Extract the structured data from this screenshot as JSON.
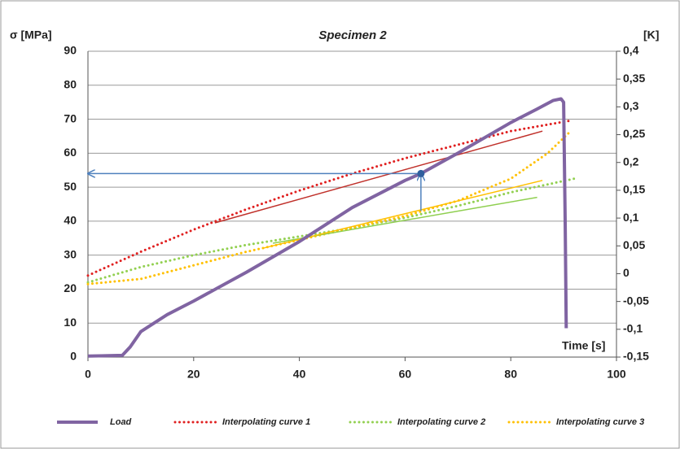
{
  "chart_data": {
    "type": "line",
    "title": "Specimen 2",
    "ylabel": "σ [MPa]",
    "y2label": "[K]",
    "xlabel": "Time [s]",
    "xlim": [
      0,
      100
    ],
    "xticks": [
      0,
      20,
      40,
      60,
      80,
      100
    ],
    "ylim": [
      0,
      90
    ],
    "yticks": [
      0,
      10,
      20,
      30,
      40,
      50,
      60,
      70,
      80,
      90
    ],
    "y2lim": [
      -0.15,
      0.4
    ],
    "y2ticks": [
      {
        "value": -0.15,
        "label": "-0,15"
      },
      {
        "value": -0.1,
        "label": "-0,1"
      },
      {
        "value": -0.05,
        "label": "-0,05"
      },
      0,
      {
        "value": 0.05,
        "label": "0,05"
      },
      {
        "value": 0.1,
        "label": "0,1"
      },
      {
        "value": 0.15,
        "label": "0,15"
      },
      {
        "value": 0.2,
        "label": "0,2"
      },
      {
        "value": 0.25,
        "label": "0,25"
      },
      {
        "value": 0.3,
        "label": "0,3"
      },
      {
        "value": 0.35,
        "label": "0,35"
      },
      {
        "value": 0.4,
        "label": "0,4"
      }
    ],
    "grid": true,
    "series": [
      {
        "name": "Load",
        "color": "#8064a2",
        "style": "solid",
        "width": 4,
        "x": [
          0,
          6.5,
          8,
          10,
          12,
          15,
          20,
          30,
          40,
          50,
          60,
          63,
          70,
          80,
          85,
          88,
          89.5,
          90,
          90.3,
          90.5
        ],
        "values": [
          0.3,
          0.5,
          3,
          7.5,
          9.5,
          12.5,
          16.5,
          25,
          34,
          44,
          52,
          54,
          60,
          69,
          73,
          75.5,
          76,
          75,
          40,
          8.5
        ]
      },
      {
        "name": "Interpolating curve 1",
        "color": "#e02020",
        "style": "dotted",
        "width": 3,
        "x": [
          0,
          10,
          20,
          30,
          40,
          50,
          60,
          70,
          80,
          91
        ],
        "values": [
          24,
          31,
          37.5,
          43.5,
          49,
          54,
          58.5,
          62.5,
          66.5,
          69.5
        ]
      },
      {
        "name": "Interpolating curve 2",
        "color": "#92d050",
        "style": "dotted",
        "width": 3,
        "x": [
          0,
          10,
          20,
          30,
          40,
          50,
          60,
          70,
          80,
          92
        ],
        "values": [
          22,
          26.5,
          30,
          33,
          35.5,
          38,
          41,
          44.5,
          48.5,
          52.5
        ]
      },
      {
        "name": "Interpolating curve 3",
        "color": "#ffc000",
        "style": "dotted",
        "width": 3,
        "x": [
          0,
          10,
          20,
          30,
          40,
          50,
          60,
          70,
          80,
          87,
          91
        ],
        "values": [
          21.5,
          23,
          27,
          31,
          34.5,
          38,
          41.5,
          46,
          52.5,
          60,
          66
        ]
      },
      {
        "color": "#c0302a",
        "style": "solid",
        "width": 1.5,
        "x": [
          24,
          86
        ],
        "values": [
          39.5,
          66.5
        ]
      },
      {
        "color": "#8fcf50",
        "style": "solid",
        "width": 1.5,
        "x": [
          35,
          85
        ],
        "values": [
          33.5,
          47
        ]
      },
      {
        "color": "#ffc000",
        "style": "solid",
        "width": 1.5,
        "x": [
          33,
          86
        ],
        "values": [
          32,
          52
        ]
      }
    ],
    "marker": {
      "x": 63,
      "y": 54,
      "color": "#2f5f9e"
    },
    "arrows": [
      {
        "x": [
          63,
          0
        ],
        "y": [
          54,
          54
        ],
        "color": "#4f81bd"
      },
      {
        "x": [
          63,
          63
        ],
        "y": [
          43,
          54
        ],
        "color": "#4f81bd"
      }
    ]
  }
}
